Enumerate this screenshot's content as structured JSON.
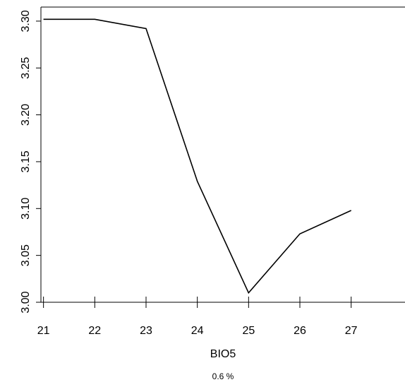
{
  "chart_data": {
    "type": "line",
    "x": [
      21,
      22,
      23,
      24,
      25,
      26,
      27
    ],
    "values": [
      3.302,
      3.302,
      3.292,
      3.129,
      3.01,
      3.073,
      3.098
    ],
    "xlabel": "BIO5",
    "subtitle": "0.6 %",
    "ylabel": "",
    "xlim": [
      20.95,
      28.05
    ],
    "ylim": [
      3.0,
      3.315
    ],
    "x_ticks": [
      "21",
      "22",
      "23",
      "24",
      "25",
      "26",
      "27"
    ],
    "y_ticks": [
      "3.00",
      "3.05",
      "3.10",
      "3.15",
      "3.20",
      "3.25",
      "3.30"
    ],
    "grid": false,
    "line_color": "#000000"
  }
}
